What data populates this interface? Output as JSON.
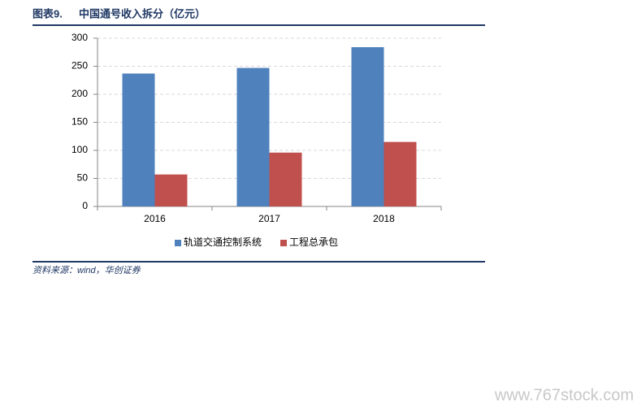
{
  "chart_data": {
    "type": "bar",
    "figure_label": "图表9.",
    "title": "中国通号收入拆分（亿元）",
    "categories": [
      "2016",
      "2017",
      "2018"
    ],
    "series": [
      {
        "name": "轨道交通控制系统",
        "color": "#4f81bd",
        "values": [
          237,
          247,
          284
        ]
      },
      {
        "name": "工程总承包",
        "color": "#c0504d",
        "values": [
          57,
          96,
          115
        ]
      }
    ],
    "ylim": [
      0,
      300
    ],
    "yticks": [
      0,
      50,
      100,
      150,
      200,
      250,
      300
    ],
    "grid": true,
    "legend": "bottom",
    "source": "资料来源：wind，华创证券",
    "watermark": "www.767stock.com"
  }
}
